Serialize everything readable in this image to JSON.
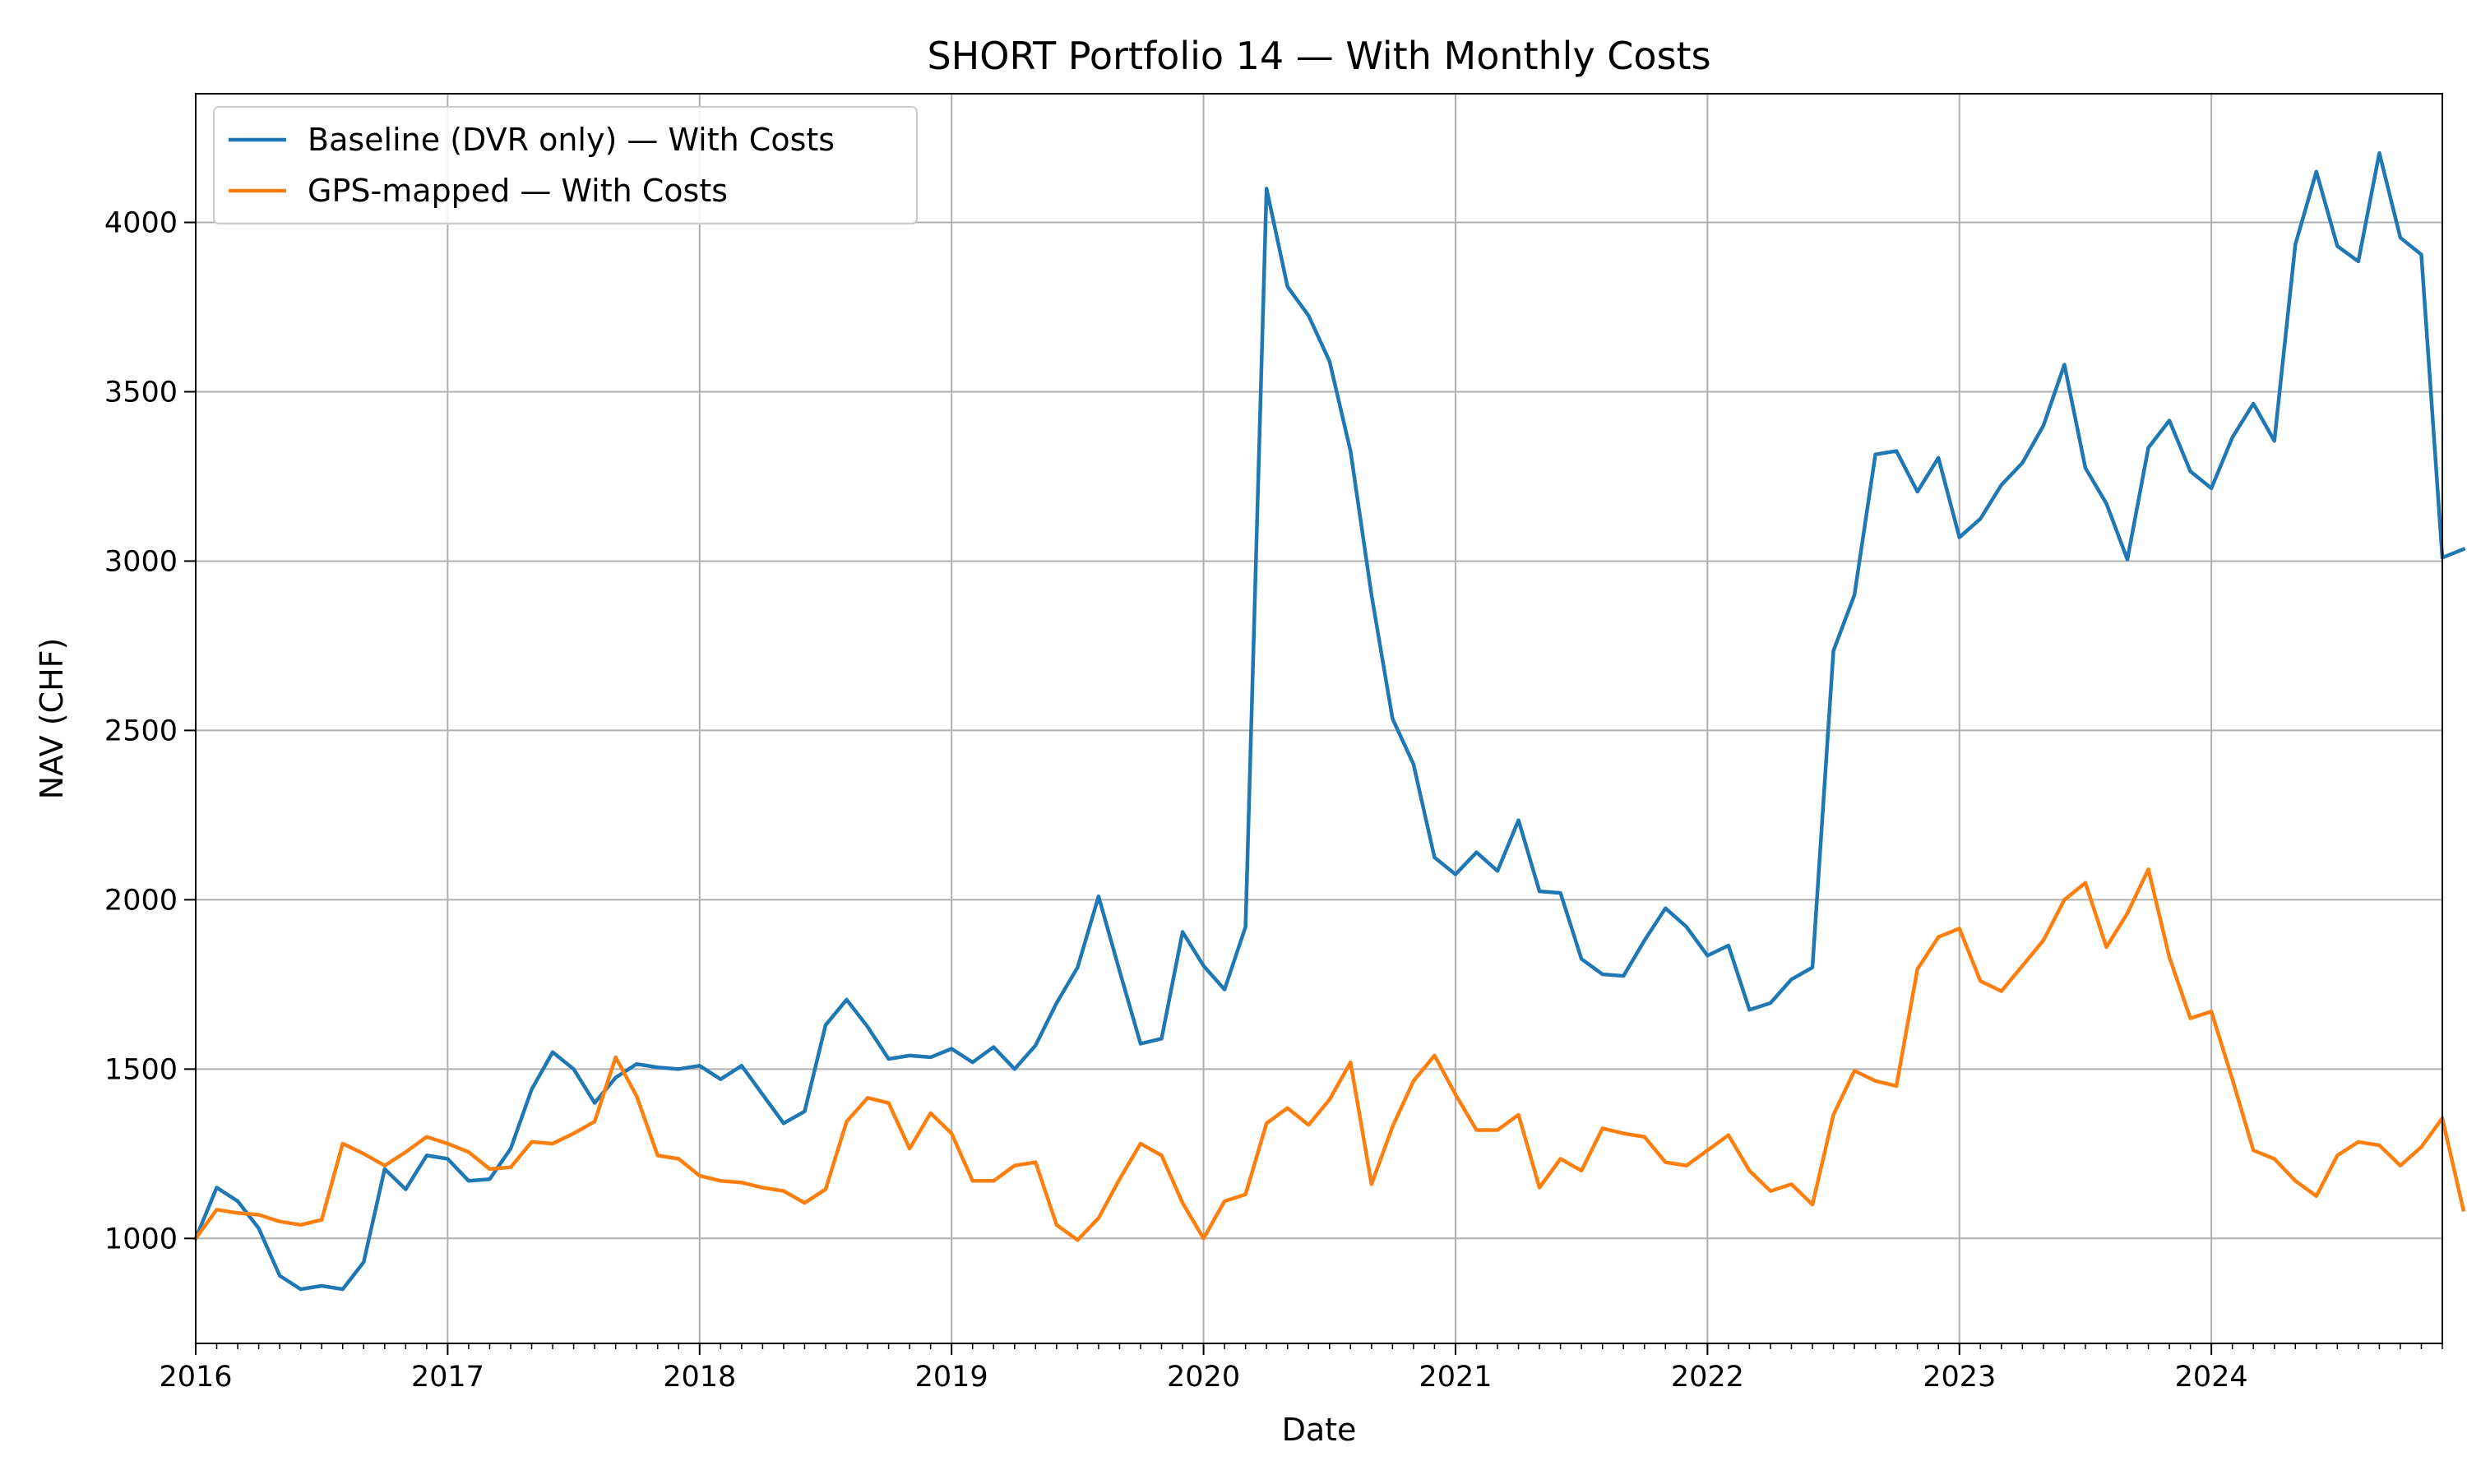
{
  "chart_data": {
    "type": "line",
    "title": "SHORT Portfolio 14 — With Monthly Costs",
    "xlabel": "Date",
    "ylabel": "NAV (CHF)",
    "x_start": "2016-01",
    "x_end": "2024-12",
    "x_ticks": [
      "2016",
      "2017",
      "2018",
      "2019",
      "2020",
      "2021",
      "2022",
      "2023",
      "2024"
    ],
    "ylim": [
      690,
      4380
    ],
    "y_ticks": [
      1000,
      1500,
      2000,
      2500,
      3000,
      3500,
      4000
    ],
    "grid": true,
    "legend_position": "top-left",
    "series": [
      {
        "name": "Baseline (DVR only) — With Costs",
        "color": "#1f77b4",
        "values": [
          1000,
          1150,
          1110,
          1030,
          890,
          850,
          860,
          850,
          930,
          1205,
          1145,
          1245,
          1235,
          1170,
          1175,
          1265,
          1440,
          1550,
          1500,
          1400,
          1475,
          1515,
          1505,
          1500,
          1510,
          1470,
          1510,
          1425,
          1340,
          1375,
          1630,
          1705,
          1625,
          1530,
          1540,
          1535,
          1560,
          1520,
          1565,
          1500,
          1570,
          1695,
          1800,
          2010,
          1790,
          1575,
          1590,
          1905,
          1805,
          1735,
          1920,
          4100,
          3810,
          3725,
          3590,
          3325,
          2900,
          2535,
          2400,
          2125,
          2075,
          2140,
          2085,
          2235,
          2025,
          2020,
          1825,
          1780,
          1775,
          1880,
          1975,
          1920,
          1835,
          1865,
          1675,
          1695,
          1765,
          1800,
          2735,
          2900,
          3315,
          3325,
          3205,
          3305,
          3070,
          3125,
          3225,
          3290,
          3400,
          3580,
          3275,
          3170,
          3005,
          3335,
          3415,
          3265,
          3215,
          3365,
          3465,
          3355,
          3935,
          4150,
          3930,
          3885,
          4205,
          3955,
          3905,
          3010,
          3035
        ]
      },
      {
        "name": "GPS-mapped — With Costs",
        "color": "#ff7f0e",
        "values": [
          1000,
          1085,
          1075,
          1070,
          1050,
          1040,
          1055,
          1280,
          1250,
          1215,
          1255,
          1300,
          1280,
          1255,
          1205,
          1210,
          1285,
          1280,
          1310,
          1345,
          1535,
          1420,
          1245,
          1235,
          1185,
          1170,
          1165,
          1150,
          1140,
          1105,
          1145,
          1345,
          1415,
          1400,
          1265,
          1370,
          1310,
          1170,
          1170,
          1215,
          1225,
          1040,
          995,
          1060,
          1175,
          1280,
          1245,
          1105,
          1000,
          1110,
          1130,
          1340,
          1385,
          1335,
          1410,
          1520,
          1160,
          1330,
          1465,
          1540,
          1425,
          1320,
          1320,
          1365,
          1150,
          1235,
          1200,
          1325,
          1310,
          1300,
          1225,
          1215,
          1260,
          1305,
          1200,
          1140,
          1160,
          1100,
          1365,
          1495,
          1465,
          1450,
          1795,
          1890,
          1915,
          1760,
          1730,
          1805,
          1880,
          2000,
          2050,
          1860,
          1960,
          2090,
          1830,
          1650,
          1670,
          1470,
          1260,
          1235,
          1170,
          1125,
          1245,
          1285,
          1275,
          1215,
          1270,
          1355,
          1085
        ]
      }
    ]
  }
}
